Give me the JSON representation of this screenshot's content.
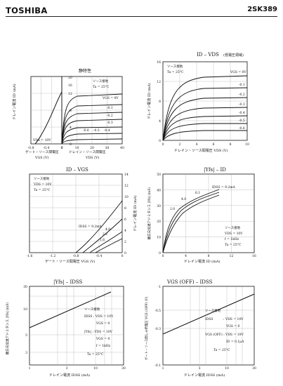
{
  "header": {
    "brand": "TOSHIBA",
    "part_number": "2SK389"
  },
  "panels": {
    "p1": {
      "title": "静特性",
      "notes": [
        "ソース接地",
        "Ta = 25°C"
      ],
      "ylabel": "ドレイン電流 ID (mA)",
      "left_xlabel": "ゲート・ソース間電圧",
      "left_xsub": "VGS (V)",
      "right_xlabel": "ドレイン・ソース間電圧",
      "right_xsub": "VDS (V)",
      "vds_label": "VDS = 10V",
      "vgs_label": "VGS = 0V",
      "curve_labels": [
        "-0.1",
        "-0.2",
        "-0.3",
        "-0.4",
        "-0.5",
        "-0.6"
      ],
      "left_ticks": [
        "-0.8",
        "-0.4",
        "0"
      ],
      "right_ticks": [
        "0",
        "10",
        "20",
        "30",
        "40"
      ],
      "y_ticks": [
        "0",
        "4",
        "8",
        "12",
        "16",
        "20"
      ]
    },
    "p2": {
      "title": "ID – VDS",
      "title_suffix": "(低電圧領域)",
      "notes": [
        "ソース接地",
        "Ta = 25°C"
      ],
      "ylabel": "ドレイン電流 ID (mA)",
      "xlabel": "ドレイン・ソース間電圧 VDS (V)",
      "vgs_label": "VGS = 0V",
      "curve_labels": [
        "-0.1",
        "-0.2",
        "-0.3",
        "-0.4",
        "-0.5",
        "-0.6"
      ],
      "x_ticks": [
        "0",
        "2",
        "4",
        "6",
        "8",
        "10"
      ],
      "y_ticks": [
        "0",
        "4",
        "8",
        "12",
        "16"
      ]
    },
    "p3": {
      "title": "ID – VGS",
      "notes": [
        "ソース接地",
        "VDS = 10V",
        "Ta = 25°C"
      ],
      "ylabel": "ドレイン電流 ID (mA)",
      "xlabel": "ゲート・ソース間電圧 VGS (V)",
      "idss_label": "IDSS = 9.2mA",
      "curve_labels": [
        "4.0",
        "2.2",
        "1.6"
      ],
      "x_ticks": [
        "-1.6",
        "-1.2",
        "-0.8",
        "-0.4",
        "0"
      ],
      "y_ticks": [
        "0",
        "2",
        "4",
        "6",
        "8",
        "10",
        "12",
        "14"
      ]
    },
    "p4": {
      "title": "|Yfs| – ID",
      "notes": [
        "ソース接地",
        "VDS = 10V",
        "f = 1kHz",
        "Ta = 25°C"
      ],
      "ylabel": "順方向伝達アドミタンス |Yfs| (mS)",
      "xlabel": "ドレイン電流 ID (mA)",
      "idss_label": "IDSS = 9.2mA",
      "curve_labels": [
        "2.0",
        "4.0",
        "6.1"
      ],
      "x_ticks": [
        "0",
        "4",
        "8",
        "12",
        "16"
      ],
      "y_ticks": [
        "0",
        "10",
        "20",
        "30",
        "40",
        "50"
      ]
    },
    "p5": {
      "title": "|Yfs| – IDSS",
      "notes": [
        "ソース接地",
        "IDSS : VDS = 10V",
        "VGS = 0",
        "|Yfs| : VDS = 10V",
        "VGS = 0",
        "f = 1kHz",
        "Ta = 25°C"
      ],
      "ylabel": "順方向伝達アドミタンス |Yfs| (mS)",
      "xlabel": "ドレイン電流 IDSS (mA)",
      "x_ticks": [
        "1",
        "3",
        "10",
        "30"
      ],
      "y_ticks": [
        "3",
        "5",
        "10",
        "30"
      ]
    },
    "p6": {
      "title": "VGS (OFF) – IDSS",
      "notes": [
        "ソース接地",
        "IDSS",
        ": VDS = 10V",
        "VGS = 0",
        "VGS (OFF) : VDS = 10V",
        "ID = 0.1μA",
        "Ta = 25°C"
      ],
      "ylabel": "ゲート・ソース間しゃ断電圧 VGS (OFF) (V)",
      "xlabel": "ドレイン電流 IDSS (mA)",
      "x_ticks": [
        "1",
        "3",
        "10",
        "30"
      ],
      "y_ticks": [
        "-1",
        "-0.5",
        "-0.3",
        "-0.1"
      ]
    }
  }
}
